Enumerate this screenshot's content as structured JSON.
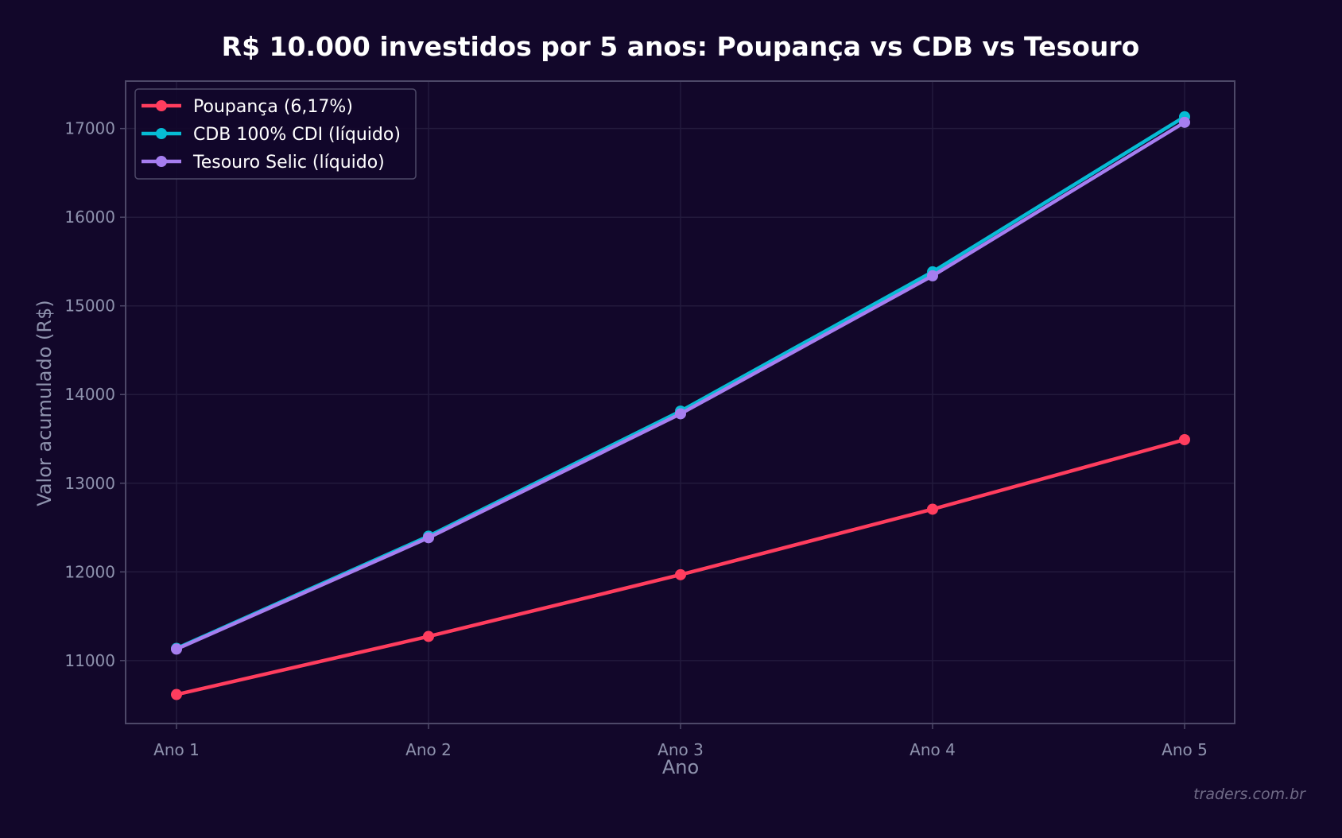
{
  "chart_data": {
    "type": "line",
    "title": "R$ 10.000 investidos por 5 anos: Poupança vs CDB vs Tesouro",
    "xlabel": "Ano",
    "ylabel": "Valor acumulado (R$)",
    "categories": [
      "Ano 1",
      "Ano 2",
      "Ano 3",
      "Ano 4",
      "Ano 5"
    ],
    "yticks": [
      11000,
      12000,
      13000,
      14000,
      15000,
      16000,
      17000
    ],
    "ylim": [
      10290,
      17535
    ],
    "grid": true,
    "legend_position": "upper left",
    "series": [
      {
        "name": "Poupança (6,17%)",
        "color": "#ff3d5e",
        "values": [
          10617,
          11272,
          11968,
          12707,
          13491
        ]
      },
      {
        "name": "CDB 100% CDI (líquido)",
        "color": "#06bcd4",
        "values": [
          11137,
          12403,
          13813,
          15384,
          17133
        ]
      },
      {
        "name": "Tesouro Selic (líquido)",
        "color": "#a67ef0",
        "values": [
          11129,
          12385,
          13783,
          15339,
          17070
        ]
      }
    ]
  },
  "watermark": "traders.com.br",
  "colors": {
    "background": "#12072a",
    "axes_frame": "#4d4868",
    "grid": "#231a3c",
    "tick_text": "#8e92ad",
    "legend_border": "#4d4868"
  }
}
